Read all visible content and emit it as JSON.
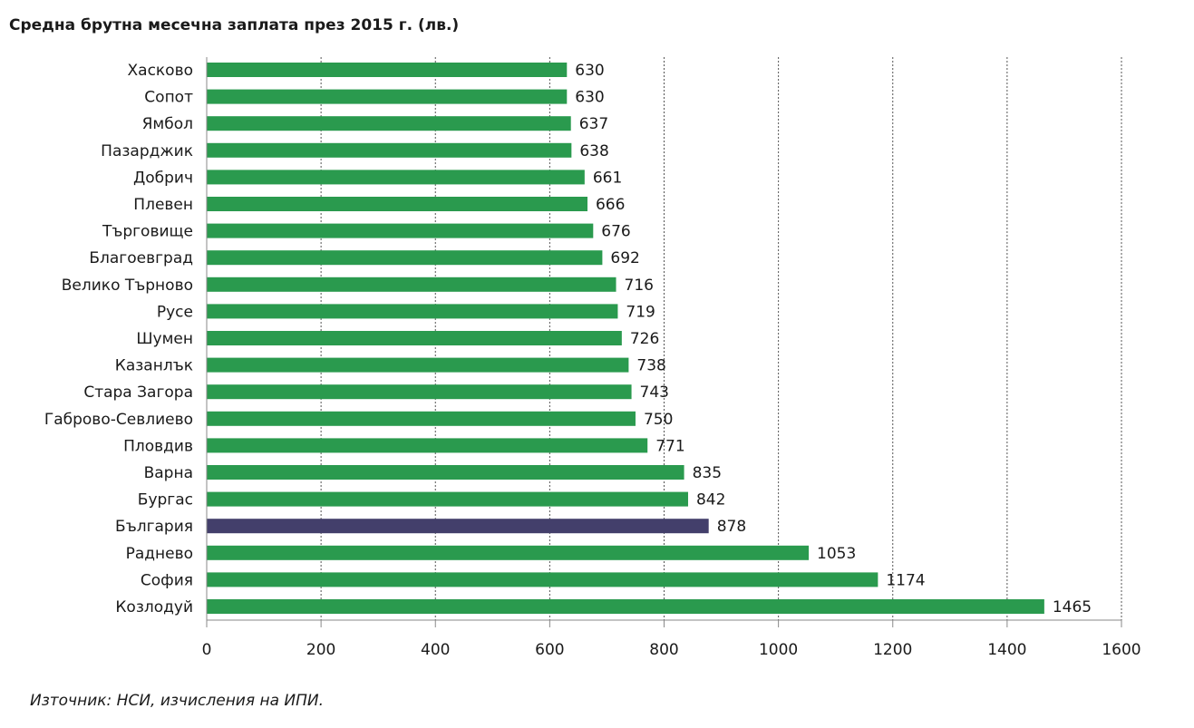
{
  "title": "Средна брутна месечна заплата през 2015 г. (лв.)",
  "source": "Източник: НСИ, изчисления на ИПИ.",
  "colors": {
    "bar": "#2a9a4e",
    "highlight": "#433f6b",
    "grid": "#555555",
    "axis": "#8a8a8a"
  },
  "chart_data": {
    "type": "bar",
    "orientation": "horizontal",
    "title": "Средна брутна месечна заплата през 2015 г. (лв.)",
    "xlabel": "",
    "ylabel": "",
    "xlim": [
      0,
      1600
    ],
    "xticks": [
      0,
      200,
      400,
      600,
      800,
      1000,
      1200,
      1400,
      1600
    ],
    "grid": "vertical dotted",
    "highlight_category": "България",
    "categories": [
      "Хасково",
      "Сопот",
      "Ямбол",
      "Пазарджик",
      "Добрич",
      "Плевен",
      "Търговище",
      "Благоевград",
      "Велико Търново",
      "Русе",
      "Шумен",
      "Казанлък",
      "Стара Загора",
      "Габрово-Севлиево",
      "Пловдив",
      "Варна",
      "Бургас",
      "България",
      "Раднево",
      "София",
      "Козлодуй"
    ],
    "values": [
      630,
      630,
      637,
      638,
      661,
      666,
      676,
      692,
      716,
      719,
      726,
      738,
      743,
      750,
      771,
      835,
      842,
      878,
      1053,
      1174,
      1465
    ]
  }
}
